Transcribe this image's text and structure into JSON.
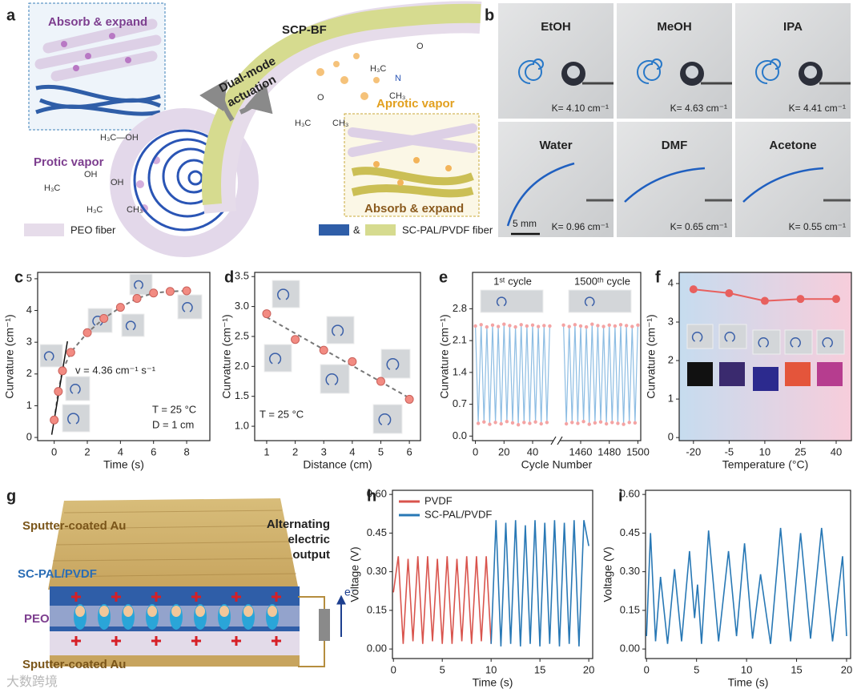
{
  "panels": {
    "a": {
      "label": "a",
      "title": "SCP-BF",
      "absorb_top": "Absorb & expand",
      "actuation": [
        "Dual-mode",
        "actuation"
      ],
      "protic": "Protic vapor",
      "aprotic": "Aprotic vapor",
      "absorb_bottom": "Absorb & expand",
      "legend_peo": "PEO fiber",
      "legend_amp": "&",
      "legend_sc": "SC-PAL/PVDF fiber",
      "molecules": [
        "H₃C—OH",
        "OH",
        "H₃C",
        "OH",
        "H₃C",
        "CH₃",
        "O",
        "H₃C",
        "CH₃",
        "O",
        "H₃C",
        "N",
        "CH₃"
      ]
    },
    "b": {
      "label": "b",
      "scale": "5 mm",
      "tiles": [
        {
          "name": "EtOH",
          "k": "K= 4.10 cm⁻¹"
        },
        {
          "name": "MeOH",
          "k": "K= 4.63 cm⁻¹"
        },
        {
          "name": "IPA",
          "k": "K= 4.41 cm⁻¹"
        },
        {
          "name": "Water",
          "k": "K= 0.96 cm⁻¹"
        },
        {
          "name": "DMF",
          "k": "K= 0.65 cm⁻¹"
        },
        {
          "name": "Acetone",
          "k": "K= 0.55 cm⁻¹"
        }
      ]
    },
    "g": {
      "label": "g",
      "top": "Sputter-coated Au",
      "sc": "SC-PAL/PVDF",
      "peo": "PEO",
      "bottom": "Sputter-coated Au",
      "output": [
        "Alternating",
        "electric",
        "output"
      ],
      "electron": "e⁻"
    }
  },
  "watermark": "大数跨境",
  "chart_data": [
    {
      "type": "scatter",
      "label": "c",
      "fit": "curve",
      "xlabel": "Time (s)",
      "ylabel": "Curvature (cm⁻¹)",
      "color": "#f28b82",
      "x": [
        0,
        0.25,
        0.5,
        1,
        2,
        3,
        4,
        5,
        6,
        7,
        8
      ],
      "values": [
        0.55,
        1.45,
        2.1,
        2.68,
        3.3,
        3.75,
        4.1,
        4.38,
        4.55,
        4.6,
        4.62
      ],
      "xlim": [
        -1,
        9.4
      ],
      "xticks": [
        0,
        2,
        4,
        6,
        8
      ],
      "ylim": [
        -0.1,
        5.2
      ],
      "yticks": [
        0,
        1,
        2,
        3,
        4,
        5
      ],
      "annotations": [
        "v = 4.36 cm⁻¹ s⁻¹",
        "T = 25 °C",
        "D = 1 cm"
      ]
    },
    {
      "type": "scatter",
      "label": "d",
      "fit": "linear",
      "xlabel": "Distance (cm)",
      "ylabel": "Curvature (cm⁻¹)",
      "color": "#f28b82",
      "x": [
        1,
        2,
        3,
        4,
        5,
        6
      ],
      "values": [
        2.88,
        2.45,
        2.27,
        2.08,
        1.75,
        1.45
      ],
      "xlim": [
        0.58,
        6.39
      ],
      "xticks": [
        1,
        2,
        3,
        4,
        5,
        6
      ],
      "ylim": [
        0.76,
        3.57
      ],
      "yticks": [
        {
          "value": 1,
          "label": "1.0"
        },
        1.5,
        {
          "value": 2,
          "label": "2.0"
        },
        2.5,
        {
          "value": 3,
          "label": "3.0"
        },
        3.5
      ],
      "annotations": [
        "T = 25 °C"
      ]
    },
    {
      "type": "broken-line",
      "label": "e",
      "xlabel": "Cycle Number",
      "ylabel": "Curvature (cm⁻¹)",
      "color": "#8dbde3",
      "marker_color": "#f4a3a3",
      "ylim": [
        -0.1,
        3.6
      ],
      "yticks": [
        {
          "value": 0,
          "label": "0.0"
        },
        0.7,
        1.4,
        2.1,
        2.8
      ],
      "segments": [
        {
          "xlim": [
            -2,
            54
          ],
          "xticks": [
            0,
            20,
            40
          ],
          "x": [
            0,
            2,
            4,
            6,
            8,
            10,
            12,
            14,
            16,
            18,
            20,
            22,
            24,
            26,
            28,
            30,
            32,
            34,
            36,
            38,
            40,
            42,
            44,
            46,
            48,
            50,
            52
          ],
          "values": [
            2.42,
            0.28,
            2.45,
            0.31,
            2.4,
            0.26,
            2.44,
            0.3,
            2.41,
            0.27,
            2.46,
            0.32,
            2.43,
            0.29,
            2.4,
            0.25,
            2.45,
            0.3,
            2.42,
            0.28,
            2.44,
            0.31,
            2.41,
            0.27,
            2.43,
            0.3,
            2.42
          ]
        },
        {
          "xlim": [
            1446,
            1502
          ],
          "xticks": [
            1460,
            1480,
            1500
          ],
          "x": [
            1448,
            1450,
            1452,
            1454,
            1456,
            1458,
            1460,
            1462,
            1464,
            1466,
            1468,
            1470,
            1472,
            1474,
            1476,
            1478,
            1480,
            1482,
            1484,
            1486,
            1488,
            1490,
            1492,
            1494,
            1496,
            1498,
            1500
          ],
          "values": [
            2.44,
            0.27,
            2.41,
            0.3,
            2.45,
            0.28,
            2.42,
            0.32,
            2.4,
            0.26,
            2.46,
            0.29,
            2.43,
            0.31,
            2.41,
            0.27,
            2.44,
            0.3,
            2.42,
            0.28,
            2.45,
            0.26,
            2.43,
            0.3,
            2.41,
            0.29,
            2.44
          ]
        }
      ],
      "annotations": [
        "1ˢᵗ cycle",
        "1500ᵗʰ cycle"
      ]
    },
    {
      "type": "line",
      "label": "f",
      "markers": true,
      "xlabel": "Temperature (°C)",
      "ylabel": "Curvature (cm⁻¹)",
      "color": "#e8605e",
      "background": [
        "#c6dcef",
        "#f7cddb"
      ],
      "x": [
        -20,
        -5,
        10,
        25,
        40
      ],
      "values": [
        3.85,
        3.75,
        3.55,
        3.6,
        3.6
      ],
      "xlim": [
        -26,
        46.4
      ],
      "xticks": [
        -20,
        -5,
        10,
        25,
        40
      ],
      "ylim": [
        -0.08,
        4.29
      ],
      "yticks": [
        0,
        1,
        2,
        3,
        4
      ]
    },
    {
      "type": "line",
      "label": "h",
      "xlabel": "Time (s)",
      "ylabel": "Voltage (V)",
      "legend": "upper left",
      "xlim": [
        -0.1,
        20.4
      ],
      "xticks": [
        0,
        5,
        10,
        15,
        20
      ],
      "ylim": [
        -0.037,
        0.616
      ],
      "yticks": [
        {
          "value": 0,
          "label": "0.00"
        },
        0.15,
        {
          "value": 0.3,
          "label": "0.30"
        },
        0.45,
        {
          "value": 0.6,
          "label": "0.60"
        }
      ],
      "series": [
        {
          "name": "PVDF",
          "color": "#d9544d",
          "x": [
            0,
            0.5,
            1,
            1.5,
            2,
            2.5,
            3,
            3.5,
            4,
            4.5,
            5,
            5.5,
            6,
            6.5,
            7,
            7.5,
            8,
            8.5,
            9,
            9.5,
            10
          ],
          "values": [
            0.22,
            0.36,
            0.02,
            0.35,
            0.03,
            0.36,
            0.02,
            0.36,
            0.03,
            0.35,
            0.02,
            0.36,
            0.02,
            0.35,
            0.03,
            0.36,
            0.02,
            0.36,
            0.03,
            0.36,
            0.02
          ]
        },
        {
          "name": "SC-PAL/PVDF",
          "color": "#2878b5",
          "x": [
            10,
            10.5,
            11,
            11.5,
            12,
            12.5,
            13,
            13.5,
            14,
            14.5,
            15,
            15.5,
            16,
            16.5,
            17,
            17.5,
            18,
            18.5,
            19,
            19.5,
            20
          ],
          "values": [
            0.02,
            0.5,
            0.01,
            0.49,
            0.02,
            0.5,
            0.01,
            0.48,
            0.02,
            0.5,
            0.01,
            0.49,
            0.02,
            0.5,
            0.01,
            0.49,
            0.02,
            0.5,
            0.01,
            0.5,
            0.4
          ]
        }
      ]
    },
    {
      "type": "line",
      "label": "i",
      "xlabel": "Time (s)",
      "ylabel": "Voltage (V)",
      "color": "#2878b5",
      "xlim": [
        -0.1,
        20.4
      ],
      "xticks": [
        0,
        5,
        10,
        15,
        20
      ],
      "ylim": [
        -0.037,
        0.616
      ],
      "yticks": [
        {
          "value": 0,
          "label": "0.00"
        },
        0.15,
        {
          "value": 0.3,
          "label": "0.30"
        },
        0.45,
        {
          "value": 0.6,
          "label": "0.60"
        }
      ],
      "x": [
        0,
        0.4,
        0.9,
        1.4,
        2.1,
        2.8,
        3.5,
        4.3,
        4.8,
        5.1,
        5.5,
        6.2,
        7.2,
        8.2,
        9.0,
        9.8,
        10.6,
        11.4,
        12.4,
        13.4,
        14.4,
        15.4,
        16.4,
        17.5,
        18.6,
        19.6,
        20
      ],
      "values": [
        0.05,
        0.45,
        0.03,
        0.28,
        0.02,
        0.31,
        0.03,
        0.38,
        0.12,
        0.25,
        0.02,
        0.46,
        0.03,
        0.38,
        0.05,
        0.41,
        0.04,
        0.29,
        0.02,
        0.47,
        0.03,
        0.45,
        0.04,
        0.47,
        0.03,
        0.36,
        0.05
      ]
    }
  ]
}
